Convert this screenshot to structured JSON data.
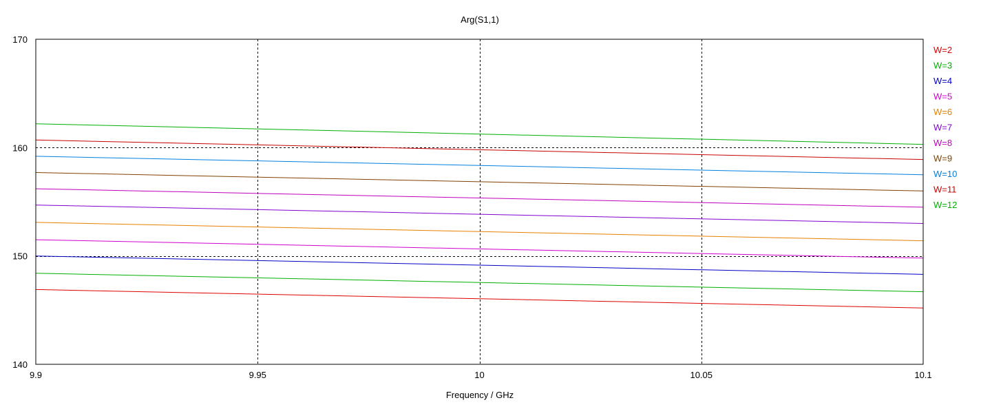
{
  "chart_data": {
    "type": "line",
    "title": "Arg(S1,1)",
    "xlabel": "Frequency / GHz",
    "ylabel": "",
    "xlim": [
      9.9,
      10.1
    ],
    "ylim": [
      140,
      170
    ],
    "x_ticks": [
      9.9,
      9.95,
      10,
      10.05,
      10.1
    ],
    "x_tick_labels": [
      "9.9",
      "9.95",
      "10",
      "10.05",
      "10.1"
    ],
    "y_ticks": [
      140,
      150,
      160,
      170
    ],
    "y_tick_labels": [
      "140",
      "150",
      "160",
      "170"
    ],
    "grid": true,
    "legend_position": "right",
    "series": [
      {
        "name": "W=2",
        "color": "#e00000",
        "x": [
          9.9,
          10.1
        ],
        "y": [
          146.9,
          145.2
        ]
      },
      {
        "name": "W=3",
        "color": "#00b000",
        "x": [
          9.9,
          10.1
        ],
        "y": [
          148.4,
          146.7
        ]
      },
      {
        "name": "W=4",
        "color": "#0000c8",
        "x": [
          9.9,
          10.1
        ],
        "y": [
          150.0,
          148.3
        ]
      },
      {
        "name": "W=5",
        "color": "#d000d0",
        "x": [
          9.9,
          10.1
        ],
        "y": [
          151.5,
          149.8
        ]
      },
      {
        "name": "W=6",
        "color": "#e88000",
        "x": [
          9.9,
          10.1
        ],
        "y": [
          153.1,
          151.4
        ]
      },
      {
        "name": "W=7",
        "color": "#8000d0",
        "x": [
          9.9,
          10.1
        ],
        "y": [
          154.7,
          153.0
        ]
      },
      {
        "name": "W=8",
        "color": "#c000c0",
        "x": [
          9.9,
          10.1
        ],
        "y": [
          156.2,
          154.5
        ]
      },
      {
        "name": "W=9",
        "color": "#804000",
        "x": [
          9.9,
          10.1
        ],
        "y": [
          157.7,
          156.0
        ]
      },
      {
        "name": "W=10",
        "color": "#0080e0",
        "x": [
          9.9,
          10.1
        ],
        "y": [
          159.2,
          157.5
        ]
      },
      {
        "name": "W=11",
        "color": "#c80000",
        "x": [
          9.9,
          10.1
        ],
        "y": [
          160.7,
          158.9
        ]
      },
      {
        "name": "W=12",
        "color": "#00b000",
        "x": [
          9.9,
          10.1
        ],
        "y": [
          162.2,
          160.3
        ]
      }
    ]
  },
  "colors": {
    "axis": "#000000",
    "grid": "#000000",
    "background": "#ffffff"
  }
}
